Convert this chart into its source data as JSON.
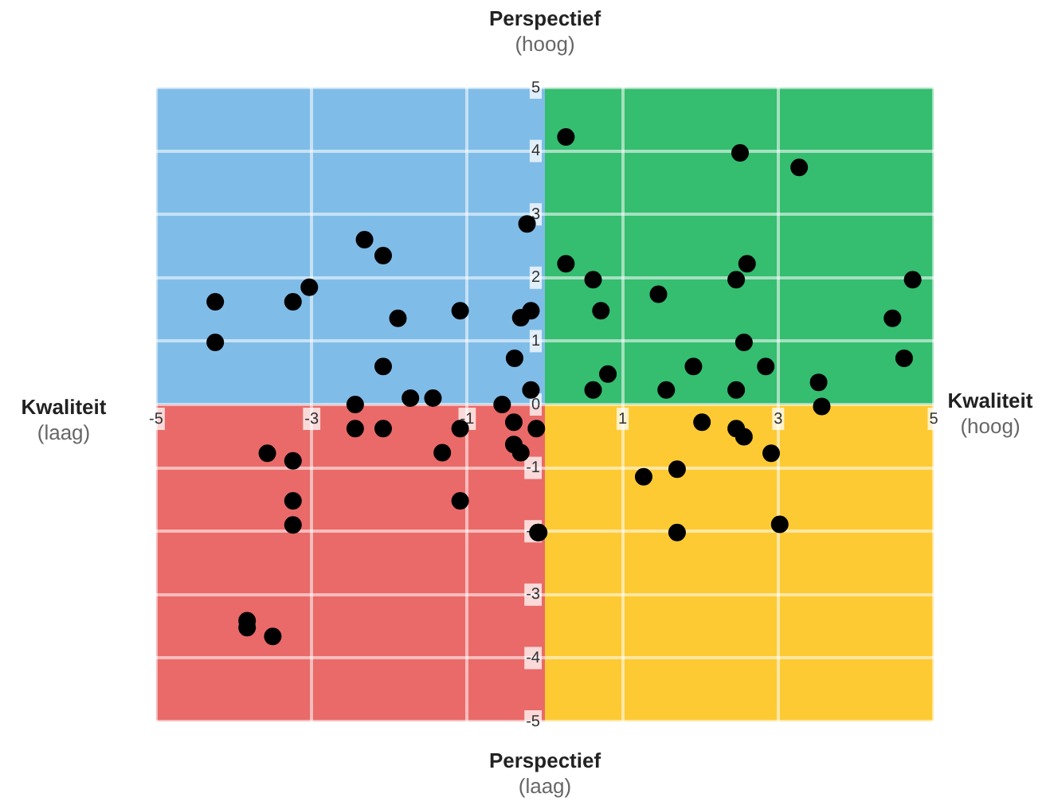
{
  "chart_data": {
    "type": "scatter",
    "annotations": [
      "Kwaliteit\n(laag)",
      "Kwaliteit\n(hoog)",
      "Perspectief\n(hoog)",
      "Perspectief\n(laag)"
    ],
    "x": [
      -4.24,
      -4.24,
      -3.24,
      -3.03,
      -2.32,
      -2.08,
      -1.89,
      -2.08,
      -2.44,
      -1.73,
      -1.44,
      -1.09,
      -0.23,
      -0.31,
      -0.18,
      -0.39,
      -0.18,
      -0.55,
      0.27,
      2.51,
      3.27,
      0.27,
      0.62,
      2.6,
      2.46,
      4.73,
      1.46,
      0.72,
      4.47,
      2.56,
      4.62,
      0.81,
      1.91,
      2.84,
      0.62,
      1.56,
      2.46,
      3.52,
      3.56,
      -0.11,
      2.02,
      2.46,
      2.56,
      2.91,
      1.27,
      1.7,
      3.02,
      1.7,
      -0.08,
      -2.44,
      -2.08,
      -1.09,
      -0.4,
      -0.4,
      -0.31,
      -1.32,
      -3.57,
      -3.24,
      -3.24,
      -1.09,
      -3.24,
      -0.09,
      -3.83,
      -3.83,
      -3.5
    ],
    "values": [
      1.62,
      0.98,
      1.62,
      1.85,
      2.6,
      2.35,
      1.36,
      0.6,
      0,
      0.1,
      0.1,
      1.48,
      2.85,
      1.37,
      1.48,
      0.73,
      0.23,
      0,
      4.22,
      3.97,
      3.74,
      2.22,
      1.97,
      2.22,
      1.97,
      1.97,
      1.74,
      1.48,
      1.36,
      0.98,
      0.73,
      0.48,
      0.6,
      0.6,
      0.23,
      0.23,
      0.23,
      0.35,
      -0.03,
      -0.38,
      -0.28,
      -0.38,
      -0.51,
      -0.77,
      -1.14,
      -1.02,
      -1.89,
      -2.02,
      -2.02,
      -0.38,
      -0.38,
      -0.38,
      -0.28,
      -0.63,
      -0.76,
      -0.76,
      -0.77,
      -0.89,
      -1.52,
      -1.52,
      -1.9,
      -2.02,
      -3.41,
      -3.52,
      -3.66
    ],
    "color": "#000000",
    "marker": "circle",
    "xlim": [
      -5,
      5
    ],
    "xticks": [
      -5,
      -3,
      -1,
      1,
      3,
      5
    ],
    "ylim": [
      -5,
      5
    ],
    "yticks": [
      -5,
      -4,
      -3,
      -2,
      -1,
      0,
      1,
      2,
      3,
      4,
      5
    ],
    "grid": true
  }
}
